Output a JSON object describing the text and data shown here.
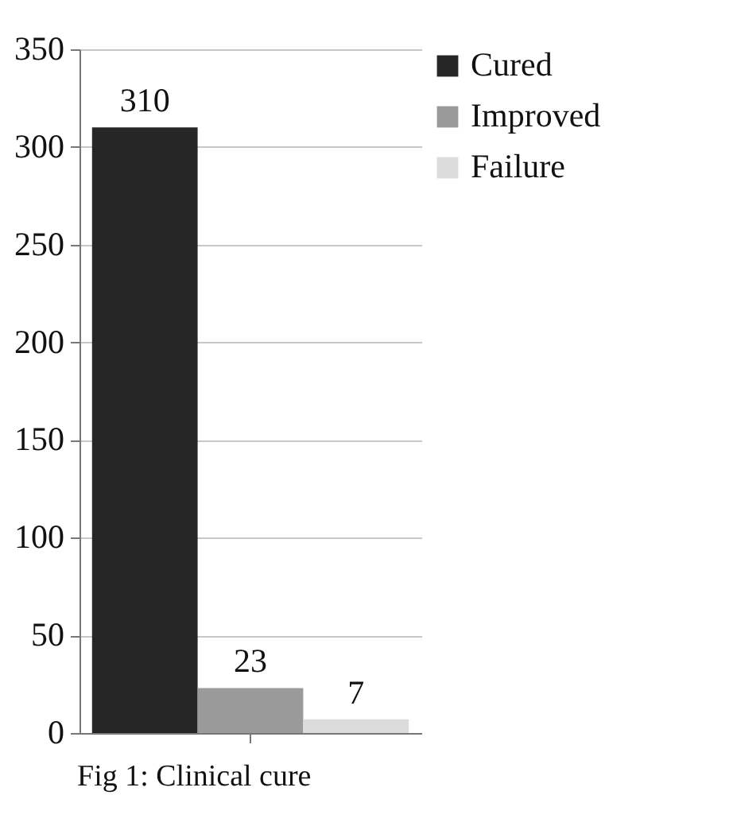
{
  "chart_data": {
    "type": "bar",
    "categories": [
      null
    ],
    "series": [
      {
        "name": "Cured",
        "color": "#262626",
        "values": [
          310
        ]
      },
      {
        "name": "Improved",
        "color": "#9a9a9a",
        "values": [
          23
        ]
      },
      {
        "name": "Failure",
        "color": "#dcdcdc",
        "values": [
          7
        ]
      }
    ],
    "ylim": [
      0,
      350
    ],
    "yticks": [
      0,
      50,
      100,
      150,
      200,
      250,
      300,
      350
    ],
    "grid": "y",
    "legend": "right",
    "data_labels": true,
    "annotations": [
      "Fig 1: Clinical cure"
    ]
  }
}
